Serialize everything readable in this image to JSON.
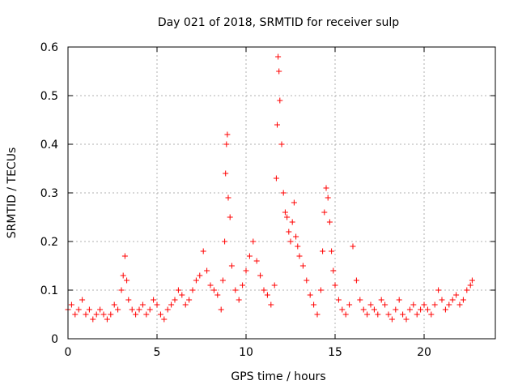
{
  "chart_data": {
    "type": "scatter",
    "title": "Day 021 of 2018, SRMTID for receiver sulp",
    "xlabel": "GPS time / hours",
    "ylabel": "SRMTID / TECUs",
    "xlim": [
      0,
      24
    ],
    "ylim": [
      0,
      0.6
    ],
    "x_ticks": [
      0,
      5,
      10,
      15,
      20
    ],
    "x_tick_labels": [
      "0",
      "5",
      "10",
      "15",
      "20"
    ],
    "y_ticks": [
      0,
      0.1,
      0.2,
      0.3,
      0.4,
      0.5,
      0.6
    ],
    "y_tick_labels": [
      "0",
      "0.1",
      "0.2",
      "0.3",
      "0.4",
      "0.5",
      "0.6"
    ],
    "grid": true,
    "marker": "+",
    "marker_color": "#ff0000",
    "series": [
      {
        "name": "SRMTID",
        "x": [
          0.0,
          0.2,
          0.4,
          0.6,
          0.8,
          1.0,
          1.2,
          1.4,
          1.6,
          1.8,
          2.0,
          2.2,
          2.4,
          2.6,
          2.8,
          3.0,
          3.1,
          3.2,
          3.3,
          3.4,
          3.6,
          3.8,
          4.0,
          4.2,
          4.4,
          4.6,
          4.8,
          5.0,
          5.2,
          5.4,
          5.6,
          5.8,
          6.0,
          6.2,
          6.4,
          6.6,
          6.8,
          7.0,
          7.2,
          7.4,
          7.6,
          7.8,
          8.0,
          8.2,
          8.4,
          8.6,
          8.7,
          8.8,
          8.85,
          8.9,
          8.95,
          9.0,
          9.1,
          9.2,
          9.4,
          9.6,
          9.8,
          10.0,
          10.2,
          10.4,
          10.6,
          10.8,
          11.0,
          11.2,
          11.4,
          11.6,
          11.7,
          11.75,
          11.8,
          11.85,
          11.9,
          12.0,
          12.1,
          12.2,
          12.3,
          12.4,
          12.5,
          12.6,
          12.7,
          12.8,
          12.9,
          13.0,
          13.2,
          13.4,
          13.6,
          13.8,
          14.0,
          14.2,
          14.3,
          14.4,
          14.5,
          14.6,
          14.7,
          14.8,
          14.9,
          15.0,
          15.2,
          15.4,
          15.6,
          15.8,
          16.0,
          16.2,
          16.4,
          16.6,
          16.8,
          17.0,
          17.2,
          17.4,
          17.6,
          17.8,
          18.0,
          18.2,
          18.4,
          18.6,
          18.8,
          19.0,
          19.2,
          19.4,
          19.6,
          19.8,
          20.0,
          20.2,
          20.4,
          20.6,
          20.8,
          21.0,
          21.2,
          21.4,
          21.6,
          21.8,
          22.0,
          22.2,
          22.4,
          22.6,
          22.7
        ],
        "y": [
          0.06,
          0.07,
          0.05,
          0.06,
          0.08,
          0.05,
          0.06,
          0.04,
          0.05,
          0.06,
          0.05,
          0.04,
          0.05,
          0.07,
          0.06,
          0.1,
          0.13,
          0.17,
          0.12,
          0.08,
          0.06,
          0.05,
          0.06,
          0.07,
          0.05,
          0.06,
          0.08,
          0.07,
          0.05,
          0.04,
          0.06,
          0.07,
          0.08,
          0.1,
          0.09,
          0.07,
          0.08,
          0.1,
          0.12,
          0.13,
          0.18,
          0.14,
          0.11,
          0.1,
          0.09,
          0.06,
          0.12,
          0.2,
          0.34,
          0.4,
          0.42,
          0.29,
          0.25,
          0.15,
          0.1,
          0.08,
          0.11,
          0.14,
          0.17,
          0.2,
          0.16,
          0.13,
          0.1,
          0.09,
          0.07,
          0.11,
          0.33,
          0.44,
          0.58,
          0.55,
          0.49,
          0.4,
          0.3,
          0.26,
          0.25,
          0.22,
          0.2,
          0.24,
          0.28,
          0.21,
          0.19,
          0.17,
          0.15,
          0.12,
          0.09,
          0.07,
          0.05,
          0.1,
          0.18,
          0.26,
          0.31,
          0.29,
          0.24,
          0.18,
          0.14,
          0.11,
          0.08,
          0.06,
          0.05,
          0.07,
          0.19,
          0.12,
          0.08,
          0.06,
          0.05,
          0.07,
          0.06,
          0.05,
          0.08,
          0.07,
          0.05,
          0.04,
          0.06,
          0.08,
          0.05,
          0.04,
          0.06,
          0.07,
          0.05,
          0.06,
          0.07,
          0.06,
          0.05,
          0.07,
          0.1,
          0.08,
          0.06,
          0.07,
          0.08,
          0.09,
          0.07,
          0.08,
          0.1,
          0.11,
          0.12
        ]
      }
    ]
  }
}
